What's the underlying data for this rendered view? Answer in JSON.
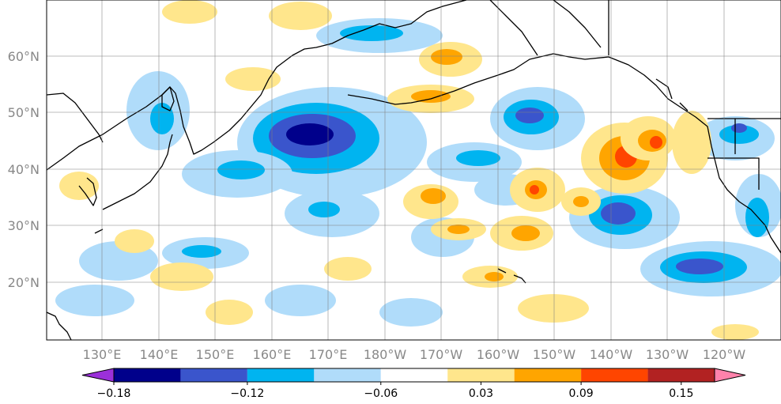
{
  "map": {
    "lon_labels": [
      "130°E",
      "140°E",
      "150°E",
      "160°E",
      "170°E",
      "180°W",
      "170°W",
      "160°W",
      "150°W",
      "140°W",
      "130°W",
      "120°W"
    ],
    "lat_labels": [
      "60°N",
      "50°N",
      "40°N",
      "30°N",
      "20°N"
    ],
    "colors": {
      "coast": "#000000",
      "grid": "#808080"
    }
  },
  "colorbar": {
    "bins": [
      "#9b30d9",
      "#00008b",
      "#3a55cc",
      "#00b4f0",
      "#b0dcfa",
      "#ffffff",
      "#ffe68c",
      "#ffa500",
      "#ff4500",
      "#b22222",
      "#ff82ab"
    ],
    "labels": [
      "−0.18",
      "−0.12",
      "−0.06",
      "0.03",
      "0.09",
      "0.15"
    ]
  }
}
